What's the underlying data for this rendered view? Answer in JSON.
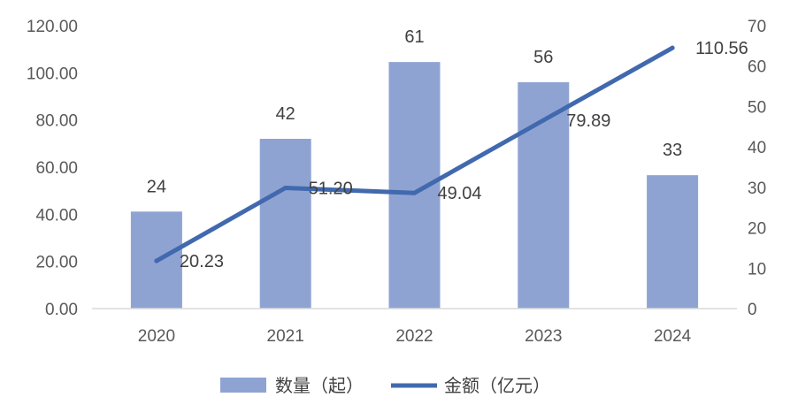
{
  "chart_data": {
    "type": "bar",
    "categories": [
      "2020",
      "2021",
      "2022",
      "2023",
      "2024"
    ],
    "series": [
      {
        "name": "数量（起）",
        "type": "bar",
        "axis": "right",
        "color": "#8FA3D3",
        "values": [
          24,
          42,
          61,
          56,
          33
        ],
        "labels": [
          "24",
          "42",
          "61",
          "56",
          "33"
        ]
      },
      {
        "name": "金额（亿元）",
        "type": "line",
        "axis": "left",
        "color": "#4169AE",
        "values": [
          20.23,
          51.2,
          49.04,
          79.89,
          110.56
        ],
        "labels": [
          "20.23",
          "51.20",
          "49.04",
          "79.89",
          "110.56"
        ]
      }
    ],
    "left_axis": {
      "min": 0,
      "max": 120,
      "ticks": [
        "0.00",
        "20.00",
        "40.00",
        "60.00",
        "80.00",
        "100.00",
        "120.00"
      ]
    },
    "right_axis": {
      "min": 0,
      "max": 70,
      "ticks": [
        "0",
        "10",
        "20",
        "30",
        "40",
        "50",
        "60",
        "70"
      ]
    },
    "grid": false,
    "legend_position": "bottom"
  }
}
